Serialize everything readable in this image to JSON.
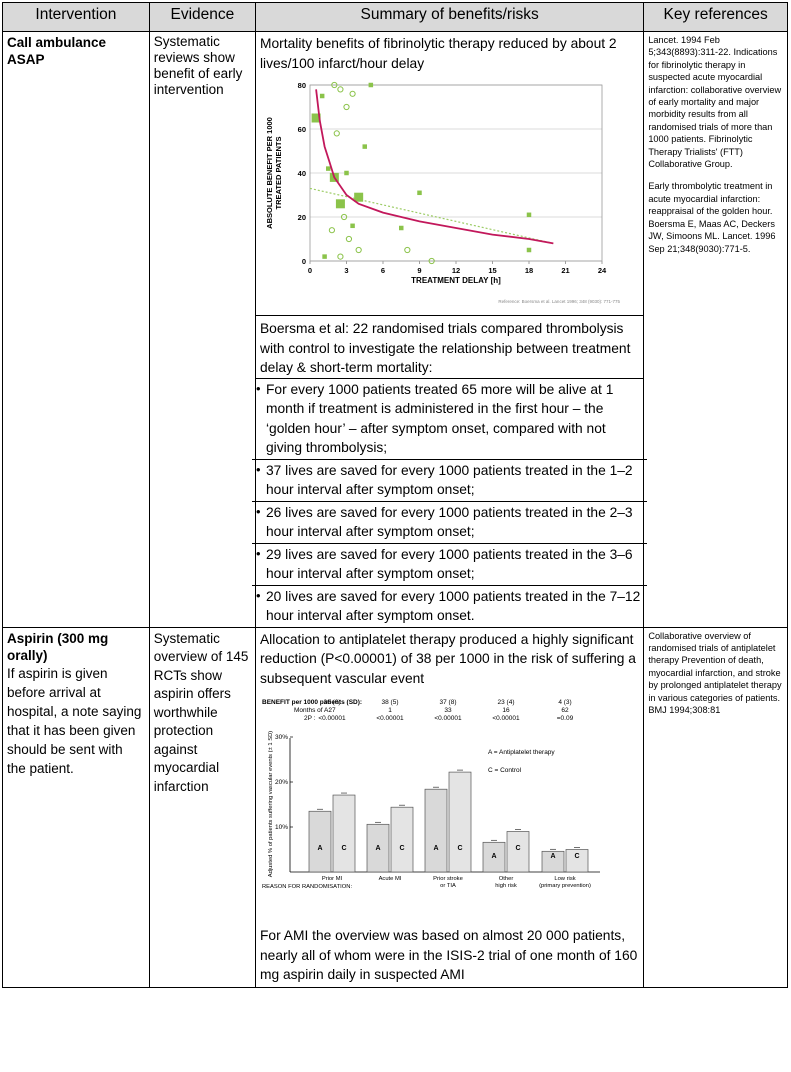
{
  "header": {
    "col1": "Intervention",
    "col2": "Evidence",
    "col3": "Summary of benefits/risks",
    "col4": "Key references"
  },
  "row1": {
    "intervention_title": "Call ambulance ASAP",
    "evidence": "Systematic reviews show benefit of early intervention",
    "summary_intro": "Mortality benefits of fibrinolytic therapy reduced by about 2 lives/100 infarct/hour delay",
    "boersma_intro": "Boersma et al:  22 randomised trials  compared thrombolysis with control to investigate the relationship between treatment delay & short-term mortality:",
    "bullets": [
      "For every 1000 patients treated 65 more will be alive at 1 month if treatment is administered in the first hour – the ‘golden hour’ – after symptom onset, compared with not giving thrombolysis;",
      "37 lives are saved for every 1000 patients treated in the 1–2 hour interval after symptom onset;",
      "26 lives are saved for every 1000 patients treated in the 2–3 hour interval after symptom onset;",
      "29 lives are saved for every 1000 patients treated in the 3–6 hour interval after symptom onset;",
      "20 lives are saved for every 1000 patients treated in the 7–12 hour interval after symptom onset."
    ],
    "ref1": "Lancet. 1994 Feb 5;343(8893):311-22. Indications for fibrinolytic therapy in suspected acute myocardial infarction: collaborative overview of early mortality and major morbidity results from all randomised trials of more than 1000 patients. Fibrinolytic Therapy Trialists' (FTT) Collaborative Group.",
    "ref2": "Early thrombolytic treatment in acute myocardial infarction: reappraisal of the golden hour. Boersma E, Maas AC, Deckers JW, Simoons ML. Lancet. 1996 Sep 21;348(9030):771-5."
  },
  "chart1": {
    "ylabel_line1": "ABSOLUTE BENEFIT PER 1000",
    "ylabel_line2": "TREATED PATIENTS",
    "xlabel": "TREATMENT DELAY [h]",
    "credit": "Reference: Boersma et al. Lancet 1996; 348 (9030): 771-775",
    "xticks": [
      "0",
      "3",
      "6",
      "9",
      "12",
      "15",
      "18",
      "21",
      "24"
    ],
    "yticks": [
      "0",
      "20",
      "40",
      "60",
      "80"
    ]
  },
  "chart_data": [
    {
      "type": "scatter",
      "title": "",
      "xlabel": "TREATMENT DELAY [h]",
      "ylabel": "ABSOLUTE BENEFIT PER 1000 TREATED PATIENTS",
      "xlim": [
        0,
        24
      ],
      "ylim": [
        0,
        80
      ],
      "points_filled": [
        {
          "x": 0.5,
          "y": 65,
          "size": "large"
        },
        {
          "x": 1.0,
          "y": 75,
          "size": "small"
        },
        {
          "x": 1.5,
          "y": 42,
          "size": "small"
        },
        {
          "x": 2.0,
          "y": 38,
          "size": "large"
        },
        {
          "x": 2.5,
          "y": 26,
          "size": "large"
        },
        {
          "x": 3.0,
          "y": 40,
          "size": "small"
        },
        {
          "x": 4.0,
          "y": 29,
          "size": "large"
        },
        {
          "x": 4.5,
          "y": 52,
          "size": "small"
        },
        {
          "x": 5.0,
          "y": 80,
          "size": "small"
        },
        {
          "x": 1.2,
          "y": 2,
          "size": "small"
        },
        {
          "x": 7.5,
          "y": 15,
          "size": "small"
        },
        {
          "x": 9.0,
          "y": 31,
          "size": "small"
        },
        {
          "x": 18.0,
          "y": 21,
          "size": "small"
        },
        {
          "x": 18.0,
          "y": 5,
          "size": "small"
        },
        {
          "x": 3.5,
          "y": 16,
          "size": "small"
        }
      ],
      "points_open": [
        {
          "x": 2.0,
          "y": 80
        },
        {
          "x": 2.5,
          "y": 78
        },
        {
          "x": 3.0,
          "y": 70
        },
        {
          "x": 3.5,
          "y": 76
        },
        {
          "x": 2.2,
          "y": 58
        },
        {
          "x": 1.8,
          "y": 14
        },
        {
          "x": 2.8,
          "y": 20
        },
        {
          "x": 4.0,
          "y": 5
        },
        {
          "x": 2.5,
          "y": 2
        },
        {
          "x": 3.2,
          "y": 10
        },
        {
          "x": 8.0,
          "y": 5
        },
        {
          "x": 10.0,
          "y": 0
        }
      ],
      "fit_curve": [
        [
          0.5,
          78
        ],
        [
          0.8,
          64
        ],
        [
          1.2,
          52
        ],
        [
          1.6,
          45
        ],
        [
          2.0,
          38
        ],
        [
          3,
          30
        ],
        [
          4,
          26
        ],
        [
          6,
          22
        ],
        [
          9,
          18
        ],
        [
          12,
          15
        ],
        [
          15,
          12
        ],
        [
          18,
          10
        ],
        [
          20,
          8
        ]
      ],
      "trend_line": [
        [
          0,
          33
        ],
        [
          20,
          8
        ]
      ]
    },
    {
      "type": "bar",
      "title": "",
      "ylabel": "Adjusted % of patients suffering vascular events (± 1 SD)",
      "xlabel": "REASON FOR RANDOMISATION",
      "categories": [
        "Prior MI",
        "Acute MI",
        "Prior stroke or TIA",
        "Other high risk",
        "Low risk (primary prevention)"
      ],
      "series": [
        {
          "name": "A = Antiplatelet therapy",
          "values": [
            13.5,
            10.6,
            18.4,
            6.6,
            4.6
          ]
        },
        {
          "name": "C = Control",
          "values": [
            17.1,
            14.4,
            22.2,
            9.0,
            5.0
          ]
        }
      ],
      "ylim": [
        0,
        30
      ]
    }
  ],
  "row2": {
    "intervention_title": "Aspirin (300 mg orally)",
    "intervention_note": "If aspirin is given before arrival at hospital, a note saying that it has been given should be sent with the patient.",
    "evidence": "Systematic overview of 145 RCTs show aspirin offers worthwhile protection against myocardial infarction",
    "summary_intro": "Allocation to antiplatelet therapy produced a highly significant reduction (P<0.00001) of 38 per 1000 in the risk of suffering a subsequent vascular event",
    "summary_outro": "For AMI the overview was based on almost 20 000 patients, nearly all of whom were in the ISIS-2 trial of one month of 160 mg aspirin daily in suspected AMI",
    "ref1": "Collaborative overview of randomised trials of antiplatelet therapy Prevention of death, myocardial infarction, and stroke by prolonged antiplatelet therapy in various categories of patients. BMJ 1994;308:81"
  },
  "chart2": {
    "benefit_label": "BENEFIT per 1000 patients (SD):",
    "months_label": "Months of A:",
    "p_label": "2P :",
    "benefits": [
      "36 (6)",
      "38 (5)",
      "37 (8)",
      "23 (4)",
      "4 (3)"
    ],
    "months": [
      "27",
      "1",
      "33",
      "16",
      "62"
    ],
    "pvals": [
      "<0.00001",
      "<0.00001",
      "<0.00001",
      "<0.00001",
      "=0.09"
    ],
    "yticks": [
      "10%",
      "20%",
      "30%"
    ],
    "ylabel": "Adjusted % of patients suffering vascular events (± 1 SD)",
    "legend_a": "A = Antiplatelet therapy",
    "legend_c": "C = Control",
    "bar_a": "A",
    "bar_c": "C",
    "reason_label": "REASON FOR RANDOMISATION:",
    "cat1": "Prior MI",
    "cat2": "Acute MI",
    "cat3a": "Prior stroke",
    "cat3b": "or TIA",
    "cat4a": "Other",
    "cat4b": "high risk",
    "cat5a": "Low risk",
    "cat5b": "(primary prevention)"
  }
}
